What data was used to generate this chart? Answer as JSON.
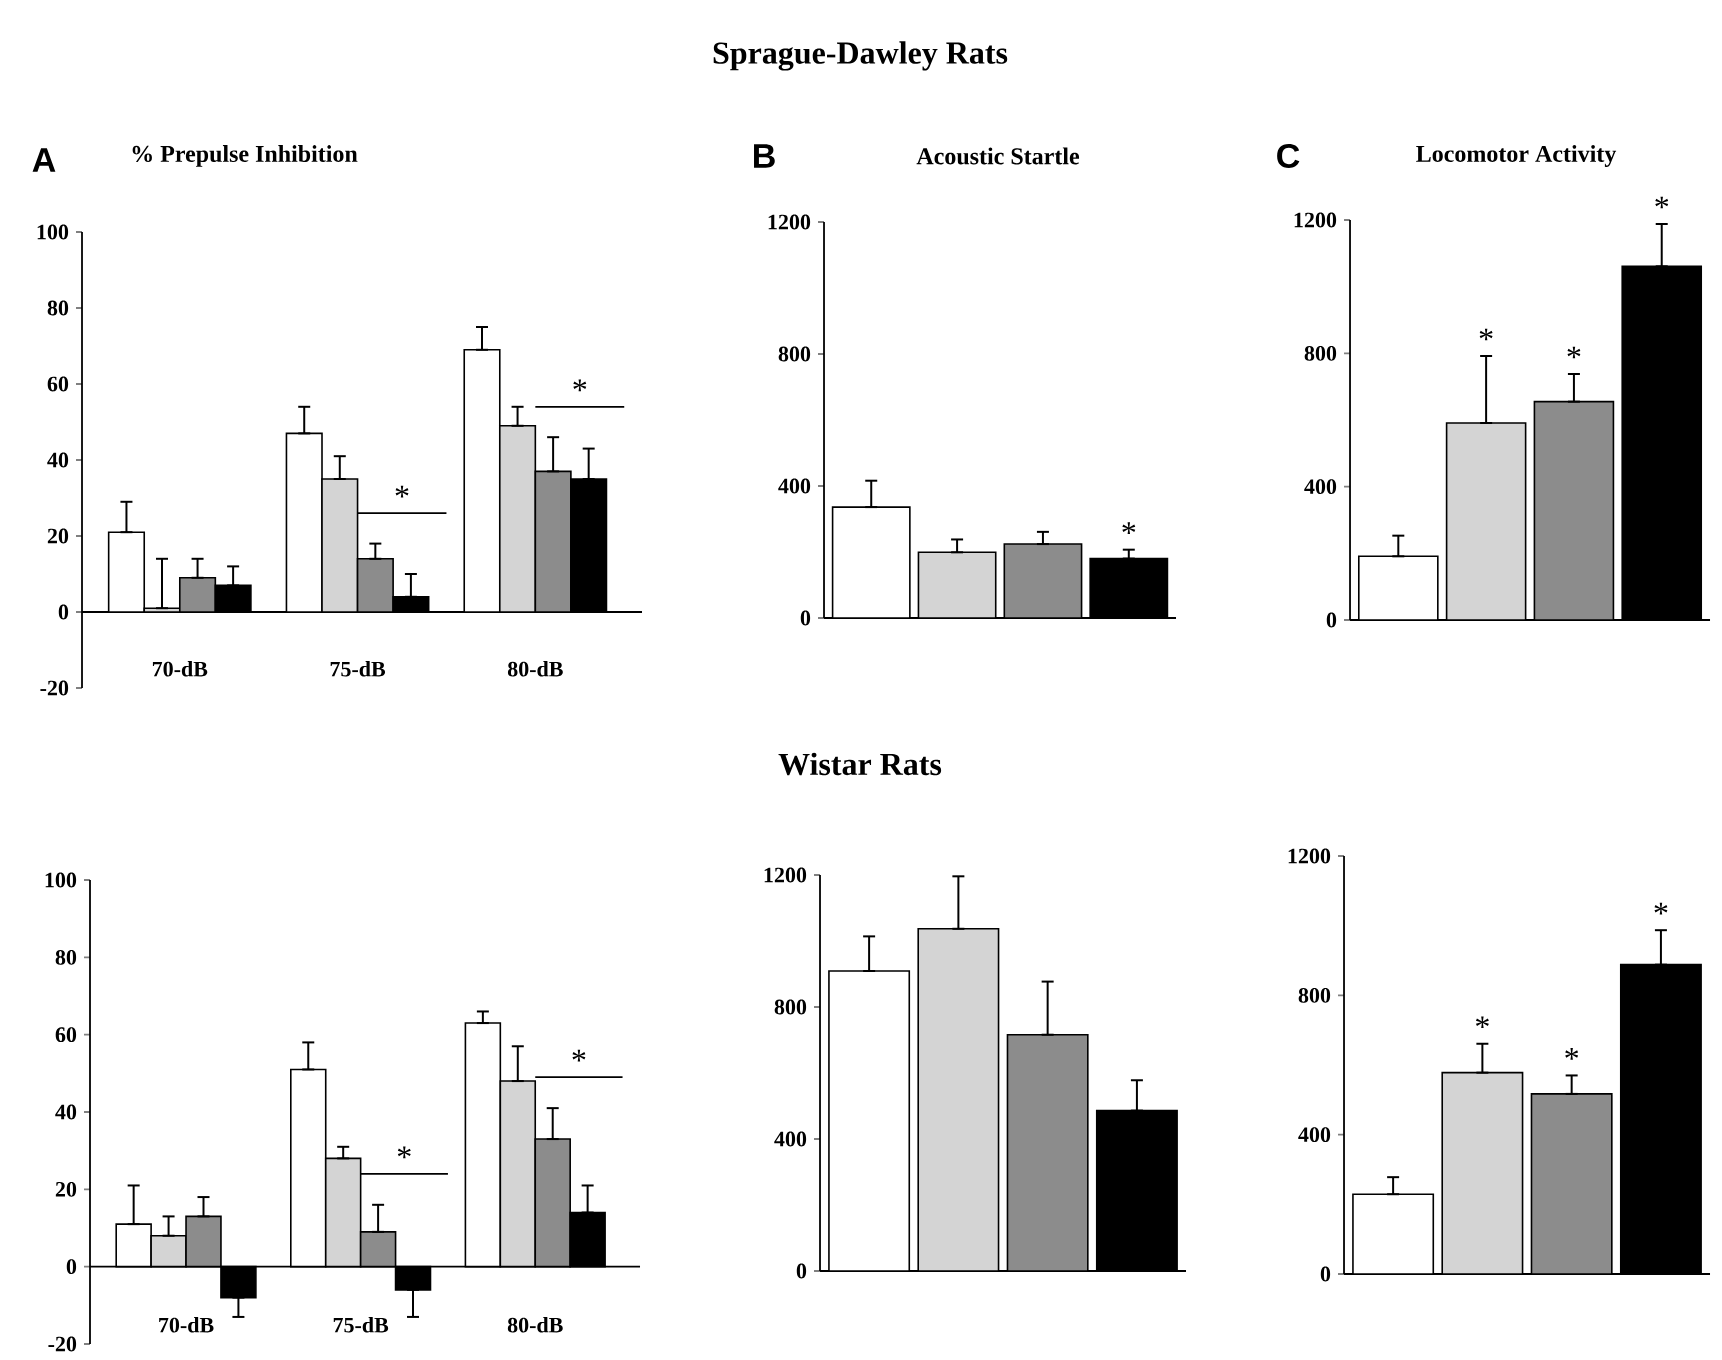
{
  "chart_data": [
    {
      "type": "bar",
      "title": "% Prepulse Inhibition",
      "categories": [
        "70-dB",
        "75-dB",
        "80-dB"
      ],
      "ylim": [
        -20,
        100
      ],
      "yticks": [
        -20,
        0,
        20,
        40,
        60,
        80,
        100
      ],
      "series": [
        {
          "color": "#ffffff",
          "values": [
            21,
            47,
            69
          ],
          "errors": [
            8,
            7,
            6
          ]
        },
        {
          "color": "#d4d4d4",
          "values": [
            1,
            35,
            49
          ],
          "errors": [
            13,
            6,
            5
          ]
        },
        {
          "color": "#8c8c8c",
          "values": [
            9,
            14,
            37
          ],
          "errors": [
            5,
            4,
            9
          ]
        },
        {
          "color": "#000000",
          "values": [
            7,
            4,
            35
          ],
          "errors": [
            5,
            6,
            8
          ]
        }
      ],
      "annotations": [
        "A",
        "Sprague-Dawley Rats",
        "*",
        "*"
      ]
    },
    {
      "type": "bar",
      "title": "Acoustic Startle",
      "categories": [
        null,
        null,
        null,
        null
      ],
      "ylim": [
        0,
        1200
      ],
      "yticks": [
        0,
        400,
        800,
        1200
      ],
      "values": [
        336,
        199,
        224,
        180
      ],
      "errors": [
        80,
        39,
        37,
        27
      ],
      "colors": [
        "#ffffff",
        "#d4d4d4",
        "#8c8c8c",
        "#000000"
      ],
      "value_labels": [
        null,
        null,
        null,
        "*"
      ],
      "annotations": [
        "B"
      ]
    },
    {
      "type": "bar",
      "title": "Locomotor Activity",
      "categories": [
        null,
        null,
        null,
        null
      ],
      "ylim": [
        0,
        1200
      ],
      "yticks": [
        0,
        400,
        800,
        1200
      ],
      "values": [
        191,
        591,
        655,
        1061
      ],
      "errors": [
        62,
        201,
        83,
        127
      ],
      "colors": [
        "#ffffff",
        "#d4d4d4",
        "#8c8c8c",
        "#000000"
      ],
      "value_labels": [
        null,
        "*",
        "*",
        "*"
      ],
      "annotations": [
        "C"
      ]
    },
    {
      "type": "bar",
      "categories": [
        "70-dB",
        "75-dB",
        "80-dB"
      ],
      "ylim": [
        -20,
        100
      ],
      "yticks": [
        -20,
        0,
        20,
        40,
        60,
        80,
        100
      ],
      "series": [
        {
          "color": "#ffffff",
          "values": [
            11,
            51,
            63
          ],
          "errors": [
            10,
            7,
            3
          ]
        },
        {
          "color": "#d4d4d4",
          "values": [
            8,
            28,
            48
          ],
          "errors": [
            5,
            3,
            9
          ]
        },
        {
          "color": "#8c8c8c",
          "values": [
            13,
            9,
            33
          ],
          "errors": [
            5,
            7,
            8
          ]
        },
        {
          "color": "#000000",
          "values": [
            -8,
            -6,
            14
          ],
          "errors": [
            5,
            7,
            7
          ]
        }
      ],
      "annotations": [
        "Wistar Rats",
        "*",
        "*"
      ]
    },
    {
      "type": "bar",
      "categories": [
        null,
        null,
        null,
        null
      ],
      "ylim": [
        0,
        1200
      ],
      "yticks": [
        0,
        400,
        800,
        1200
      ],
      "values": [
        909,
        1037,
        716,
        486
      ],
      "errors": [
        105,
        159,
        161,
        92
      ],
      "colors": [
        "#ffffff",
        "#d4d4d4",
        "#8c8c8c",
        "#000000"
      ]
    },
    {
      "type": "bar",
      "categories": [
        null,
        null,
        null,
        null
      ],
      "ylim": [
        0,
        1200
      ],
      "yticks": [
        0,
        400,
        800,
        1200
      ],
      "values": [
        229,
        578,
        517,
        888
      ],
      "errors": [
        49,
        83,
        53,
        99
      ],
      "colors": [
        "#ffffff",
        "#d4d4d4",
        "#8c8c8c",
        "#000000"
      ],
      "value_labels": [
        null,
        "*",
        "*",
        "*"
      ]
    }
  ]
}
